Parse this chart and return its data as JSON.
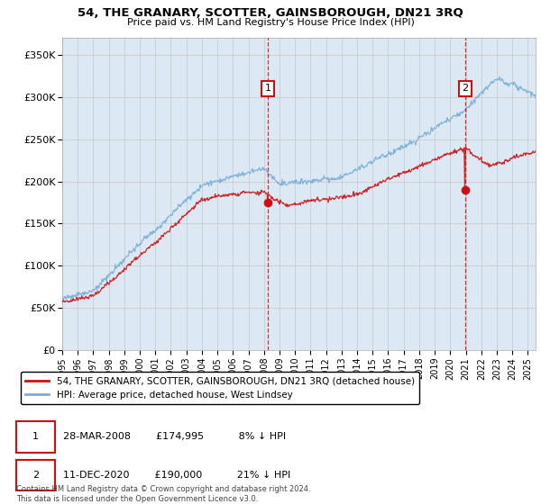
{
  "title": "54, THE GRANARY, SCOTTER, GAINSBOROUGH, DN21 3RQ",
  "subtitle": "Price paid vs. HM Land Registry's House Price Index (HPI)",
  "plot_bg_color": "#dce9f5",
  "ylabel_ticks": [
    "£0",
    "£50K",
    "£100K",
    "£150K",
    "£200K",
    "£250K",
    "£300K",
    "£350K"
  ],
  "ytick_vals": [
    0,
    50000,
    100000,
    150000,
    200000,
    250000,
    300000,
    350000
  ],
  "ylim": [
    0,
    370000
  ],
  "xlim_start": 1995.0,
  "xlim_end": 2025.5,
  "sale1_date": 2008.24,
  "sale1_price": 174995,
  "sale2_date": 2020.95,
  "sale2_price": 190000,
  "legend_line1": "54, THE GRANARY, SCOTTER, GAINSBOROUGH, DN21 3RQ (detached house)",
  "legend_line2": "HPI: Average price, detached house, West Lindsey",
  "ann1_date": "28-MAR-2008",
  "ann1_price": "£174,995",
  "ann1_pct": "8% ↓ HPI",
  "ann2_date": "11-DEC-2020",
  "ann2_price": "£190,000",
  "ann2_pct": "21% ↓ HPI",
  "footer": "Contains HM Land Registry data © Crown copyright and database right 2024.\nThis data is licensed under the Open Government Licence v3.0.",
  "hpi_color": "#7aaed6",
  "sold_color": "#cc1111",
  "grid_color": "#cccccc",
  "ann_box_color": "#cc1111"
}
